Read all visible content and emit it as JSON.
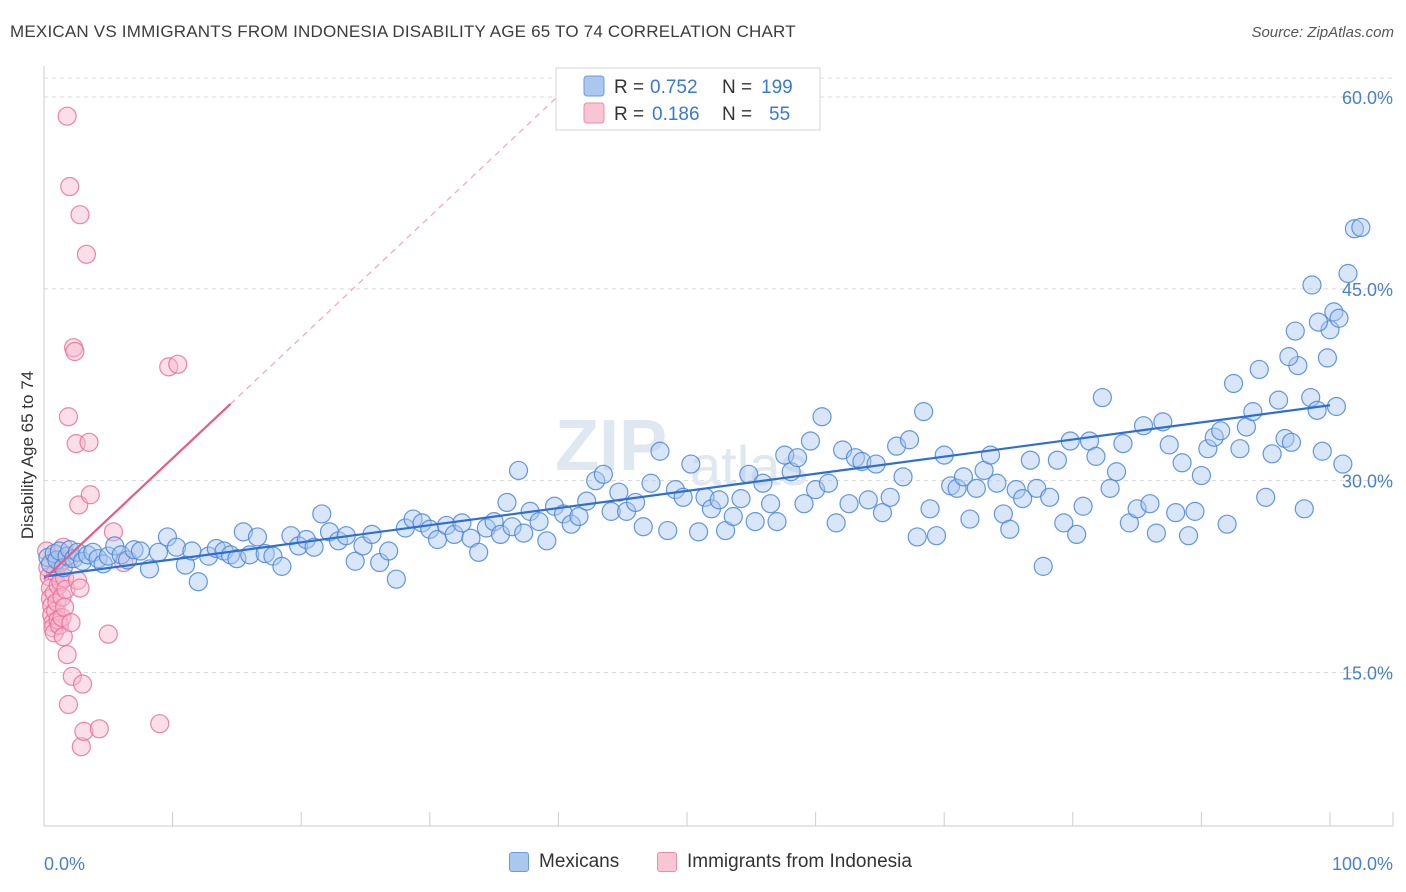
{
  "title": "MEXICAN VS IMMIGRANTS FROM INDONESIA DISABILITY AGE 65 TO 74 CORRELATION CHART",
  "source": "Source: ZipAtlas.com",
  "colors": {
    "blue": "#4a86d8",
    "blue_fill": "#aac7ee",
    "pink": "#e8719a",
    "pink_fill": "#f5b8cb",
    "axis_label": "#4a80c8",
    "grid": "#d8d8d8"
  },
  "legend": {
    "rows": [
      {
        "r_label": "R =",
        "r_value": "0.752",
        "n_label": "N =",
        "n_value": "199",
        "color": "blue"
      },
      {
        "r_label": "R =",
        "r_value": "0.186",
        "n_label": "N =",
        "n_value": "55",
        "color": "pink"
      }
    ]
  },
  "bottom_legend": {
    "items": [
      {
        "label": "Mexicans",
        "color": "blue"
      },
      {
        "label": "Immigrants from Indonesia",
        "color": "pink"
      }
    ]
  },
  "chart_data": {
    "type": "scatter",
    "title": "MEXICAN VS IMMIGRANTS FROM INDONESIA DISABILITY AGE 65 TO 74 CORRELATION CHART",
    "xlabel": "",
    "ylabel": "Disability Age 65 to 74",
    "xlim": [
      0,
      100
    ],
    "ylim": [
      0,
      63
    ],
    "x_tick_labels": [
      "0.0%",
      "100.0%"
    ],
    "y_ticks": [
      15,
      30,
      45,
      60
    ],
    "y_tick_labels": [
      "15.0%",
      "30.0%",
      "45.0%",
      "60.0%"
    ],
    "grid": true,
    "legend_position": "top-center",
    "series": [
      {
        "name": "Mexicans",
        "r": 0.752,
        "n": 199,
        "trend": {
          "x": [
            0,
            100
          ],
          "y": [
            22.5,
            35.9
          ]
        },
        "points": [
          [
            0.3,
            24
          ],
          [
            0.5,
            23.5
          ],
          [
            0.8,
            24.3
          ],
          [
            1,
            23.8
          ],
          [
            1.2,
            24.5
          ],
          [
            1.5,
            23.2
          ],
          [
            1.8,
            24.1
          ],
          [
            2,
            24.6
          ],
          [
            2.3,
            23.9
          ],
          [
            2.6,
            24.4
          ],
          [
            3,
            23.7
          ],
          [
            3.4,
            24.2
          ],
          [
            3.8,
            24.4
          ],
          [
            4.2,
            23.9
          ],
          [
            4.6,
            23.5
          ],
          [
            5,
            24.1
          ],
          [
            5.5,
            24.9
          ],
          [
            6,
            24.2
          ],
          [
            6.5,
            23.8
          ],
          [
            7,
            24.6
          ],
          [
            7.5,
            24.5
          ],
          [
            8.2,
            23.1
          ],
          [
            8.9,
            24.4
          ],
          [
            9.6,
            25.6
          ],
          [
            10.3,
            24.8
          ],
          [
            11,
            23.4
          ],
          [
            11.5,
            24.5
          ],
          [
            12,
            22.1
          ],
          [
            12.8,
            24.1
          ],
          [
            13.4,
            24.7
          ],
          [
            14,
            24.5
          ],
          [
            14.5,
            24.2
          ],
          [
            15,
            23.9
          ],
          [
            15.5,
            26
          ],
          [
            16,
            24.2
          ],
          [
            16.6,
            25.6
          ],
          [
            17.2,
            24.3
          ],
          [
            17.8,
            24.1
          ],
          [
            18.5,
            23.3
          ],
          [
            19.2,
            25.7
          ],
          [
            19.8,
            24.9
          ],
          [
            20.4,
            25.4
          ],
          [
            21,
            24.8
          ],
          [
            21.6,
            27.4
          ],
          [
            22.2,
            26
          ],
          [
            22.9,
            25.3
          ],
          [
            23.5,
            25.7
          ],
          [
            24.2,
            23.7
          ],
          [
            24.8,
            24.9
          ],
          [
            25.5,
            25.8
          ],
          [
            26.1,
            23.6
          ],
          [
            26.8,
            24.5
          ],
          [
            27.4,
            22.3
          ],
          [
            28.1,
            26.3
          ],
          [
            28.7,
            27
          ],
          [
            29.4,
            26.7
          ],
          [
            30,
            26.2
          ],
          [
            30.6,
            25.4
          ],
          [
            31.3,
            26.5
          ],
          [
            31.9,
            25.8
          ],
          [
            32.5,
            26.7
          ],
          [
            33.2,
            25.5
          ],
          [
            33.8,
            24.4
          ],
          [
            34.4,
            26.3
          ],
          [
            35,
            26.8
          ],
          [
            35.5,
            25.8
          ],
          [
            36,
            28.3
          ],
          [
            36.4,
            26.4
          ],
          [
            36.9,
            30.8
          ],
          [
            37.3,
            25.9
          ],
          [
            37.8,
            27.6
          ],
          [
            38.5,
            26.8
          ],
          [
            39.1,
            25.3
          ],
          [
            39.7,
            28
          ],
          [
            40.4,
            27.4
          ],
          [
            41,
            26.6
          ],
          [
            41.6,
            27.2
          ],
          [
            42.2,
            28.4
          ],
          [
            42.9,
            30
          ],
          [
            43.5,
            30.5
          ],
          [
            44.1,
            27.6
          ],
          [
            44.7,
            29.1
          ],
          [
            45.3,
            27.6
          ],
          [
            46,
            28.3
          ],
          [
            46.6,
            26.4
          ],
          [
            47.2,
            29.8
          ],
          [
            47.9,
            32.3
          ],
          [
            48.5,
            26.1
          ],
          [
            49.1,
            29.3
          ],
          [
            49.7,
            28.7
          ],
          [
            50.3,
            31.3
          ],
          [
            50.9,
            26
          ],
          [
            51.4,
            28.7
          ],
          [
            51.9,
            27.8
          ],
          [
            52.5,
            28.5
          ],
          [
            53,
            26.1
          ],
          [
            53.6,
            27.2
          ],
          [
            54.2,
            28.6
          ],
          [
            54.8,
            30.5
          ],
          [
            55.3,
            26.8
          ],
          [
            55.9,
            29.8
          ],
          [
            56.5,
            28.2
          ],
          [
            57,
            26.8
          ],
          [
            57.6,
            32
          ],
          [
            58.1,
            30.7
          ],
          [
            58.6,
            31.8
          ],
          [
            59.1,
            28.2
          ],
          [
            59.6,
            33.1
          ],
          [
            60,
            29.3
          ],
          [
            60.5,
            35
          ],
          [
            61,
            29.8
          ],
          [
            61.6,
            26.7
          ],
          [
            62.1,
            32.4
          ],
          [
            62.6,
            28.2
          ],
          [
            63.1,
            31.8
          ],
          [
            63.6,
            31.5
          ],
          [
            64.1,
            28.5
          ],
          [
            64.7,
            31.3
          ],
          [
            65.2,
            27.5
          ],
          [
            65.8,
            28.7
          ],
          [
            66.3,
            32.7
          ],
          [
            66.8,
            30.3
          ],
          [
            67.3,
            33.2
          ],
          [
            67.9,
            25.6
          ],
          [
            68.4,
            35.4
          ],
          [
            68.9,
            27.8
          ],
          [
            69.4,
            25.7
          ],
          [
            70,
            32
          ],
          [
            70.5,
            29.6
          ],
          [
            71,
            29.4
          ],
          [
            71.5,
            30.3
          ],
          [
            72,
            27
          ],
          [
            72.5,
            29.4
          ],
          [
            73.1,
            30.8
          ],
          [
            73.6,
            32
          ],
          [
            74.1,
            29.8
          ],
          [
            74.6,
            27.4
          ],
          [
            75.1,
            26.2
          ],
          [
            75.6,
            29.3
          ],
          [
            76.1,
            28.6
          ],
          [
            76.7,
            31.6
          ],
          [
            77.2,
            29.4
          ],
          [
            77.7,
            23.3
          ],
          [
            78.2,
            28.7
          ],
          [
            78.8,
            31.6
          ],
          [
            79.3,
            26.7
          ],
          [
            79.8,
            33.1
          ],
          [
            80.3,
            25.8
          ],
          [
            80.8,
            28
          ],
          [
            81.3,
            33.1
          ],
          [
            81.8,
            31.9
          ],
          [
            82.3,
            36.5
          ],
          [
            82.9,
            29.4
          ],
          [
            83.4,
            30.7
          ],
          [
            83.9,
            32.9
          ],
          [
            84.4,
            26.7
          ],
          [
            85,
            27.8
          ],
          [
            85.5,
            34.3
          ],
          [
            86,
            28.2
          ],
          [
            86.5,
            25.9
          ],
          [
            87,
            34.6
          ],
          [
            87.5,
            32.8
          ],
          [
            88,
            27.5
          ],
          [
            88.5,
            31.4
          ],
          [
            89,
            25.7
          ],
          [
            89.5,
            27.6
          ],
          [
            90,
            30.4
          ],
          [
            90.5,
            32.5
          ],
          [
            91,
            33.4
          ],
          [
            91.5,
            33.9
          ],
          [
            92,
            26.6
          ],
          [
            92.5,
            37.6
          ],
          [
            93,
            32.5
          ],
          [
            93.5,
            34.2
          ],
          [
            94,
            35.4
          ],
          [
            94.5,
            38.7
          ],
          [
            95,
            28.7
          ],
          [
            95.5,
            32.1
          ],
          [
            96,
            36.3
          ],
          [
            96.5,
            33.3
          ],
          [
            97,
            33
          ],
          [
            97.5,
            39
          ],
          [
            98,
            27.8
          ],
          [
            98.5,
            36.5
          ],
          [
            99,
            35.5
          ],
          [
            99.4,
            32.3
          ],
          [
            99.8,
            39.6
          ],
          [
            100,
            41.8
          ],
          [
            100.5,
            35.8
          ],
          [
            101,
            31.3
          ],
          [
            96.8,
            39.7
          ],
          [
            97.3,
            41.7
          ],
          [
            99.1,
            42.4
          ],
          [
            98.6,
            45.3
          ],
          [
            100.3,
            43.2
          ],
          [
            100.7,
            42.7
          ],
          [
            101.4,
            46.2
          ],
          [
            101.9,
            49.7
          ],
          [
            102.4,
            49.8
          ]
        ]
      },
      {
        "name": "Immigrants from Indonesia",
        "r": 0.186,
        "n": 55,
        "trend": {
          "x": [
            0,
            14.5
          ],
          "y": [
            22.3,
            36
          ]
        },
        "points": [
          [
            0.2,
            24.5
          ],
          [
            0.3,
            23.2
          ],
          [
            0.4,
            22.5
          ],
          [
            0.5,
            21.6
          ],
          [
            0.5,
            20.8
          ],
          [
            0.6,
            20.2
          ],
          [
            0.6,
            19.5
          ],
          [
            0.7,
            18.9
          ],
          [
            0.7,
            18.5
          ],
          [
            0.8,
            18.1
          ],
          [
            0.8,
            21.2
          ],
          [
            0.9,
            22.8
          ],
          [
            0.9,
            19.8
          ],
          [
            1,
            24.2
          ],
          [
            1,
            20.5
          ],
          [
            1.1,
            21.8
          ],
          [
            1.1,
            19.1
          ],
          [
            1.2,
            18.7
          ],
          [
            1.3,
            22.1
          ],
          [
            1.3,
            23.6
          ],
          [
            1.4,
            20.9
          ],
          [
            1.4,
            19.3
          ],
          [
            1.5,
            24.8
          ],
          [
            1.5,
            17.8
          ],
          [
            1.6,
            22.4
          ],
          [
            1.6,
            20.1
          ],
          [
            1.7,
            21.5
          ],
          [
            1.8,
            16.4
          ],
          [
            1.9,
            35
          ],
          [
            1.9,
            12.5
          ],
          [
            2,
            23.9
          ],
          [
            2.1,
            18.9
          ],
          [
            2.2,
            14.7
          ],
          [
            2.3,
            40.4
          ],
          [
            2.4,
            40.1
          ],
          [
            2.5,
            32.9
          ],
          [
            2.6,
            22.2
          ],
          [
            2.7,
            28.1
          ],
          [
            2.8,
            50.8
          ],
          [
            2.9,
            9.2
          ],
          [
            3,
            14.1
          ],
          [
            3.1,
            10.4
          ],
          [
            3.3,
            47.7
          ],
          [
            3.5,
            33
          ],
          [
            3.6,
            28.9
          ],
          [
            4.3,
            10.6
          ],
          [
            5,
            18
          ],
          [
            5.4,
            26
          ],
          [
            6.2,
            23.6
          ],
          [
            9,
            11
          ],
          [
            9.7,
            38.9
          ],
          [
            10.4,
            39.1
          ],
          [
            1.8,
            58.5
          ],
          [
            2.0,
            53
          ],
          [
            2.8,
            21.6
          ]
        ]
      }
    ]
  }
}
